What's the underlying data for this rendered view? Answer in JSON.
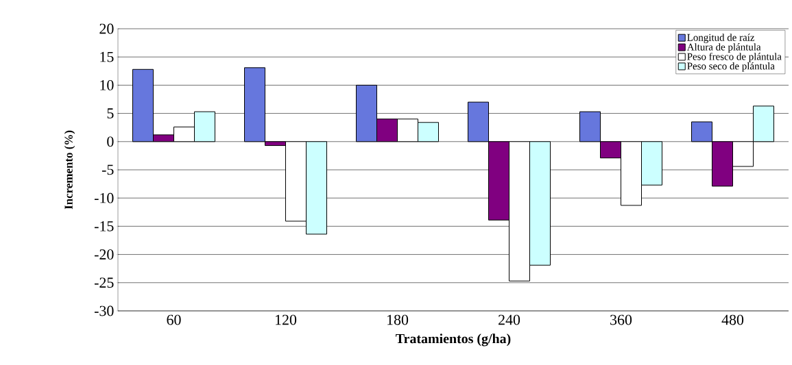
{
  "chart_data": {
    "type": "bar",
    "xlabel": "Tratamientos (g/ha)",
    "ylabel": "Incremento (%)",
    "categories": [
      "60",
      "120",
      "180",
      "240",
      "360",
      "480"
    ],
    "series": [
      {
        "name": "Longitud de raíz",
        "color": "#6677dd",
        "values": [
          12.8,
          13.1,
          10.0,
          7.0,
          5.3,
          3.5
        ]
      },
      {
        "name": "Altura de plántula",
        "color": "#800080",
        "values": [
          1.2,
          -0.7,
          4.0,
          -13.9,
          -2.9,
          -7.9
        ]
      },
      {
        "name": "Peso fresco de plántula",
        "color": "#ffffff",
        "values": [
          2.6,
          -14.1,
          4.0,
          -24.7,
          -11.3,
          -4.4
        ]
      },
      {
        "name": "Peso seco de plántula",
        "color": "#ccffff",
        "values": [
          5.3,
          -16.4,
          3.4,
          -21.9,
          -7.7,
          6.3
        ]
      }
    ],
    "ylim": [
      -30,
      20
    ],
    "yticks": [
      -30,
      -25,
      -20,
      -15,
      -10,
      -5,
      0,
      5,
      10,
      15,
      20
    ],
    "grid": "y",
    "legend": "top right"
  }
}
